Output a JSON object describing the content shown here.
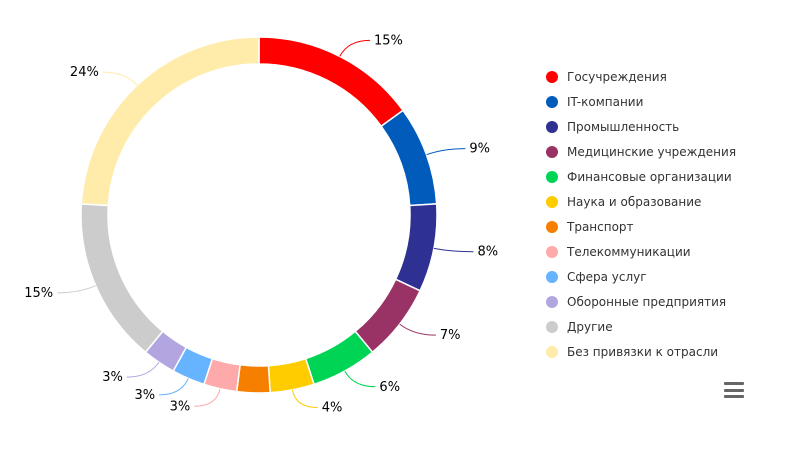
{
  "chart_data": {
    "type": "pie",
    "variant": "donut",
    "start_angle_deg": 0,
    "legend_position": "right",
    "slices": [
      {
        "name": "Госучреждения",
        "value": 15,
        "label": "15%",
        "color": "#ff0000"
      },
      {
        "name": "IT-компании",
        "value": 9,
        "label": "9%",
        "color": "#005bbb"
      },
      {
        "name": "Промышленность",
        "value": 8,
        "label": "8%",
        "color": "#2e3192"
      },
      {
        "name": "Медицинские учреждения",
        "value": 7,
        "label": "7%",
        "color": "#993366"
      },
      {
        "name": "Финансовые организации",
        "value": 6,
        "label": "6%",
        "color": "#00d455"
      },
      {
        "name": "Наука и образование",
        "value": 4,
        "label": "4%",
        "color": "#ffcc00"
      },
      {
        "name": "Транспорт",
        "value": 3,
        "label": "",
        "color": "#f77f00"
      },
      {
        "name": "Телекоммуникации",
        "value": 3,
        "label": "3%",
        "color": "#ffaaaa"
      },
      {
        "name": "Сфера услуг",
        "value": 3,
        "label": "3%",
        "color": "#66b3ff"
      },
      {
        "name": "Оборонные предприятия",
        "value": 3,
        "label": "3%",
        "color": "#b3a6e0"
      },
      {
        "name": "Другие",
        "value": 15,
        "label": "15%",
        "color": "#cccccc"
      },
      {
        "name": "Без привязки к отрасли",
        "value": 24,
        "label": "24%",
        "color": "#ffecaa"
      }
    ]
  },
  "menu": {
    "icon": "hamburger-menu-icon"
  }
}
